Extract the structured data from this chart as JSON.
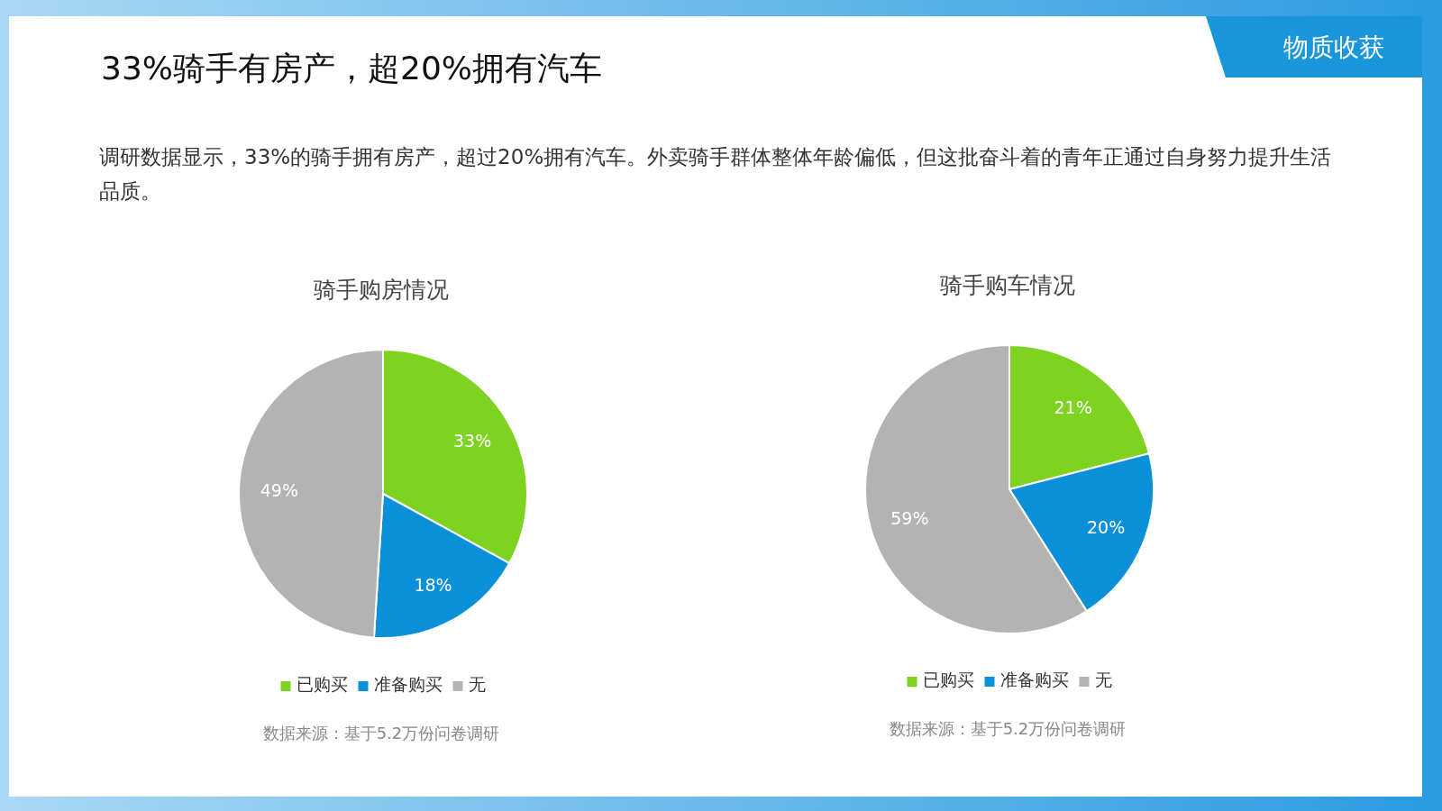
{
  "chart_data": [
    {
      "type": "other",
      "title": "33%骑手有房产，超20%拥有汽车",
      "subtitle": "调研数据显示，33%的骑手拥有房产，超过20%拥有汽车。外卖骑手群体整体年龄偏低，但这批奋斗着的青年正通过自身努力提升生活品质。",
      "annotations": [
        "物质收获"
      ]
    },
    {
      "type": "pie",
      "title": "骑手购房情况",
      "categories": [
        "已购买",
        "准备购买",
        "无"
      ],
      "values": [
        33,
        18,
        49
      ],
      "value_labels": [
        "33%",
        "18%",
        "49%"
      ],
      "colors": [
        "#7ed321",
        "#0a90d8",
        "#b3b3b3"
      ],
      "legend": "bottom",
      "annotations": [
        "数据来源：基于5.2万份问卷调研"
      ]
    },
    {
      "type": "pie",
      "title": "骑手购车情况",
      "categories": [
        "已购买",
        "准备购买",
        "无"
      ],
      "values": [
        21,
        20,
        59
      ],
      "value_labels": [
        "21%",
        "20%",
        "59%"
      ],
      "colors": [
        "#7ed321",
        "#0a90d8",
        "#b3b3b3"
      ],
      "legend": "bottom",
      "annotations": [
        "数据来源：基于5.2万份问卷调研"
      ]
    }
  ]
}
